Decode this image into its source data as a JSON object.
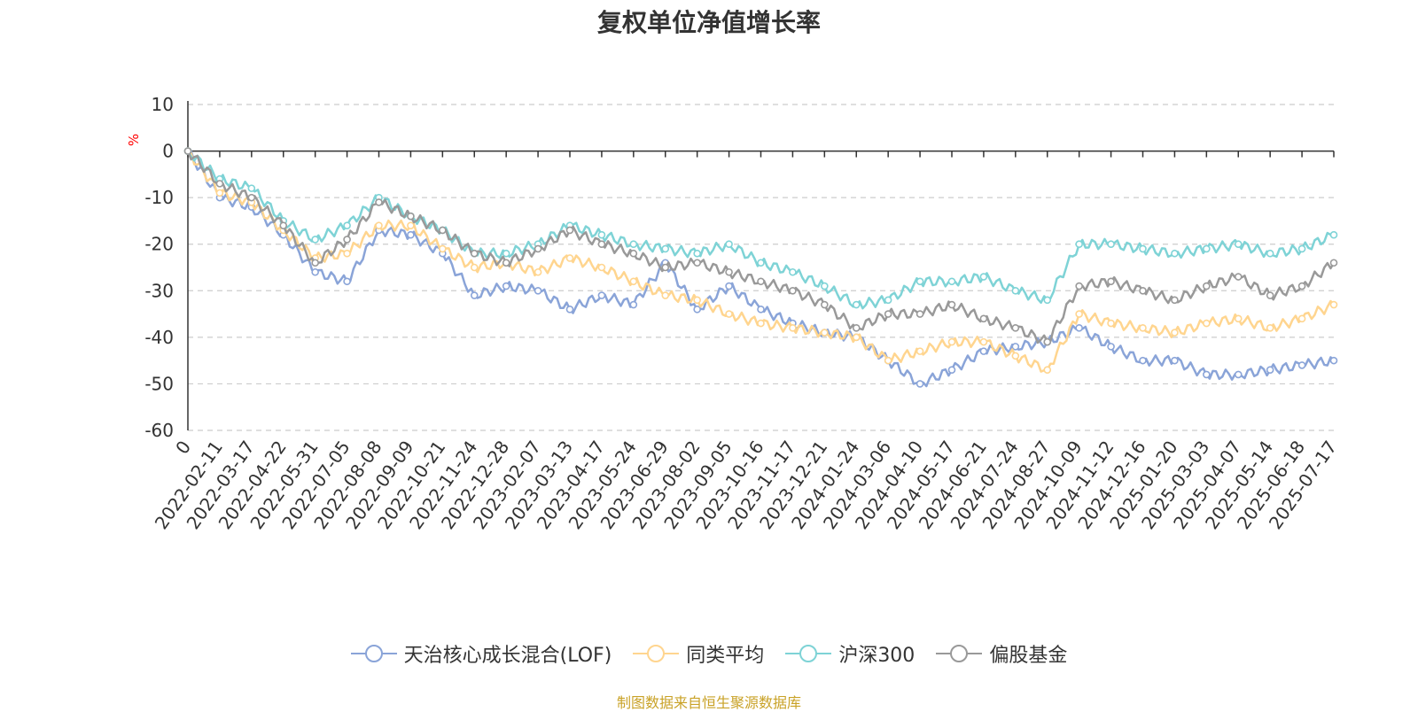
{
  "chart_data": {
    "type": "line",
    "title": "复权单位净值增长率",
    "ylabel": "%",
    "ylim": [
      -60,
      10
    ],
    "yticks": [
      10,
      0,
      -10,
      -20,
      -30,
      -40,
      -50,
      -60
    ],
    "x_tick_labels": [
      "0",
      "2022-02-11",
      "2022-03-17",
      "2022-04-22",
      "2022-05-31",
      "2022-07-05",
      "2022-08-08",
      "2022-09-09",
      "2022-10-21",
      "2022-11-24",
      "2022-12-28",
      "2023-02-07",
      "2023-03-13",
      "2023-04-17",
      "2023-05-24",
      "2023-06-29",
      "2023-08-02",
      "2023-09-05",
      "2023-10-16",
      "2023-11-17",
      "2023-12-21",
      "2024-01-24",
      "2024-03-06",
      "2024-04-10",
      "2024-05-17",
      "2024-06-21",
      "2024-07-24",
      "2024-08-27",
      "2024-10-09",
      "2024-11-12",
      "2024-12-16",
      "2025-01-20",
      "2025-03-03",
      "2025-04-07",
      "2025-05-14",
      "2025-06-18",
      "2025-07-17"
    ],
    "grid": "horizontal dashed",
    "legend_position": "bottom",
    "series": [
      {
        "name": "天治核心成长混合(LOF)",
        "color": "#8aa4d8",
        "values": [
          0,
          -10,
          -12,
          -18,
          -26,
          -28,
          -17,
          -18,
          -22,
          -31,
          -29,
          -30,
          -34,
          -31,
          -33,
          -24,
          -34,
          -29,
          -34,
          -37,
          -39,
          -40,
          -45,
          -50,
          -47,
          -43,
          -42,
          -41,
          -38,
          -42,
          -45,
          -45,
          -48,
          -48,
          -47,
          -46,
          -45
        ]
      },
      {
        "name": "同类平均",
        "color": "#ffd58f",
        "values": [
          0,
          -9,
          -11,
          -17,
          -23,
          -22,
          -16,
          -16,
          -21,
          -25,
          -24,
          -26,
          -23,
          -25,
          -28,
          -31,
          -32,
          -35,
          -37,
          -38,
          -39,
          -40,
          -45,
          -43,
          -41,
          -41,
          -44,
          -47,
          -35,
          -37,
          -38,
          -39,
          -37,
          -36,
          -38,
          -36,
          -33
        ]
      },
      {
        "name": "沪深300",
        "color": "#7ed3d6",
        "values": [
          0,
          -6,
          -8,
          -15,
          -19,
          -16,
          -10,
          -14,
          -17,
          -22,
          -22,
          -20,
          -16,
          -18,
          -20,
          -21,
          -22,
          -20,
          -24,
          -26,
          -29,
          -33,
          -32,
          -28,
          -28,
          -27,
          -30,
          -32,
          -20,
          -20,
          -21,
          -22,
          -21,
          -20,
          -22,
          -21,
          -18
        ]
      },
      {
        "name": "偏股基金",
        "color": "#999999",
        "values": [
          0,
          -7,
          -10,
          -16,
          -24,
          -19,
          -11,
          -14,
          -17,
          -22,
          -24,
          -21,
          -17,
          -20,
          -22,
          -25,
          -24,
          -26,
          -28,
          -30,
          -33,
          -38,
          -35,
          -35,
          -33,
          -36,
          -38,
          -41,
          -29,
          -28,
          -30,
          -32,
          -29,
          -27,
          -31,
          -29,
          -24
        ]
      }
    ]
  },
  "source_note": "制图数据来自恒生聚源数据库"
}
